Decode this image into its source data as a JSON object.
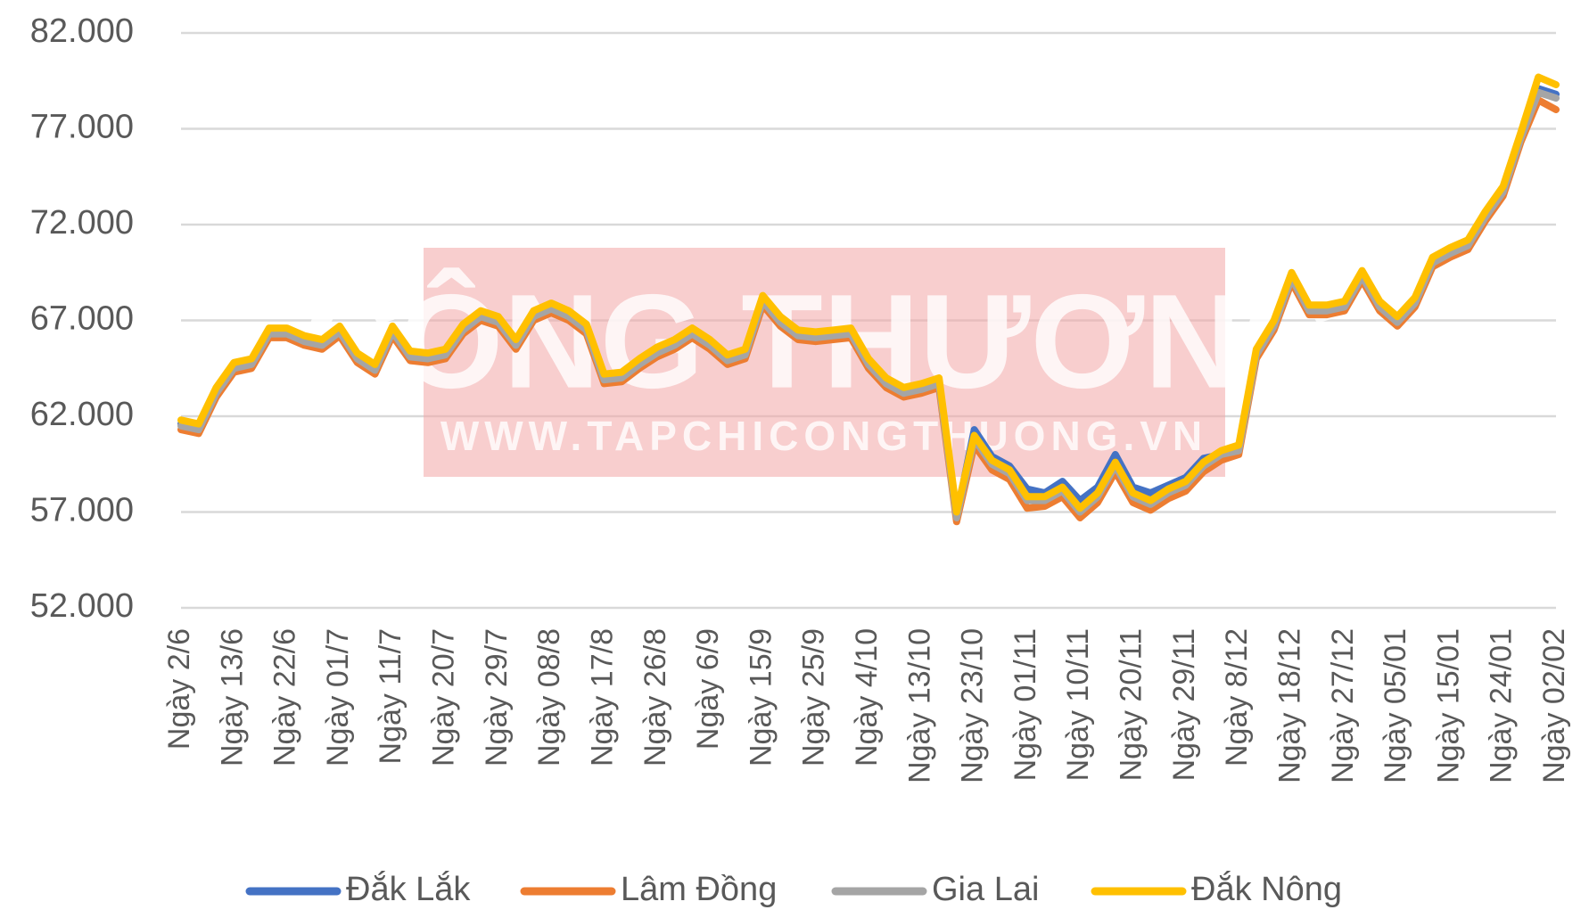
{
  "chart_data": {
    "type": "line",
    "watermark": "CÔNG THƯƠNG",
    "watermark_url": "WWW.TAPCHICONGTHUONG.VN",
    "categories": [
      "Ngày 2/6",
      null,
      null,
      "Ngày 13/6",
      null,
      null,
      "Ngày 22/6",
      null,
      null,
      "Ngày 01/7",
      null,
      null,
      "Ngày 11/7",
      null,
      null,
      "Ngày 20/7",
      null,
      null,
      "Ngày 29/7",
      null,
      null,
      "Ngày 08/8",
      null,
      null,
      "Ngày 17/8",
      null,
      null,
      "Ngày 26/8",
      null,
      null,
      "Ngày 6/9",
      null,
      null,
      "Ngày 15/9",
      null,
      null,
      "Ngày 25/9",
      null,
      null,
      "Ngày 4/10",
      null,
      null,
      "Ngày 13/10",
      null,
      null,
      "Ngày 23/10",
      null,
      null,
      "Ngày 01/11",
      null,
      null,
      "Ngày 10/11",
      null,
      null,
      "Ngày 20/11",
      null,
      null,
      "Ngày 29/11",
      null,
      null,
      "Ngày 8/12",
      null,
      null,
      "Ngày 18/12",
      null,
      null,
      "Ngày 27/12",
      null,
      null,
      "Ngày 05/01",
      null,
      null,
      "Ngày 15/01",
      null,
      null,
      "Ngày 24/01",
      null,
      null,
      "Ngày 02/02"
    ],
    "series": [
      {
        "name": "Đắk Lắk",
        "color": "#4472c4",
        "values": [
          61600,
          61400,
          63300,
          64600,
          64800,
          66400,
          66400,
          66000,
          65800,
          66500,
          65100,
          64500,
          66500,
          65200,
          65100,
          65300,
          66600,
          67300,
          67000,
          65800,
          67300,
          67700,
          67300,
          66600,
          64000,
          64100,
          64800,
          65400,
          65800,
          66400,
          65800,
          65000,
          65300,
          68100,
          67000,
          66300,
          66200,
          66300,
          66400,
          64800,
          63800,
          63300,
          63500,
          63800,
          56800,
          61300,
          59900,
          59400,
          58200,
          58000,
          58600,
          57600,
          58300,
          60000,
          58300,
          58000,
          58400,
          58800,
          59800,
          60000,
          60300,
          65300,
          66800,
          69300,
          67600,
          67600,
          67800,
          69400,
          67800,
          67000,
          68000,
          70100,
          70600,
          71000,
          72500,
          73800,
          76600,
          79100,
          78800
        ]
      },
      {
        "name": "Lâm Đồng",
        "color": "#ed7d31",
        "values": [
          61300,
          61100,
          63000,
          64300,
          64500,
          66100,
          66100,
          65700,
          65500,
          66200,
          64800,
          64200,
          66200,
          64900,
          64800,
          65000,
          66300,
          67000,
          66700,
          65500,
          67000,
          67400,
          67000,
          66300,
          63700,
          63800,
          64500,
          65100,
          65500,
          66100,
          65500,
          64700,
          65000,
          67800,
          66700,
          66000,
          65900,
          66000,
          66100,
          64500,
          63500,
          63000,
          63200,
          63500,
          56500,
          60500,
          59200,
          58700,
          57200,
          57300,
          57800,
          56700,
          57500,
          59100,
          57500,
          57100,
          57700,
          58100,
          59100,
          59700,
          60000,
          65000,
          66500,
          69000,
          67300,
          67300,
          67500,
          69100,
          67500,
          66700,
          67700,
          69800,
          70300,
          70700,
          72200,
          73500,
          76300,
          78500,
          78000
        ]
      },
      {
        "name": "Gia Lai",
        "color": "#a5a5a5",
        "values": [
          61500,
          61300,
          63200,
          64500,
          64700,
          66300,
          66300,
          65900,
          65700,
          66400,
          65000,
          64400,
          66400,
          65100,
          65000,
          65200,
          66500,
          67200,
          66900,
          65700,
          67200,
          67600,
          67200,
          66500,
          63900,
          64000,
          64700,
          65300,
          65700,
          66300,
          65700,
          64900,
          65200,
          68000,
          66900,
          66200,
          66100,
          66200,
          66300,
          64700,
          63700,
          63200,
          63400,
          63700,
          56700,
          60800,
          59500,
          59000,
          57600,
          57600,
          58100,
          57000,
          57800,
          59400,
          57800,
          57400,
          58000,
          58400,
          59400,
          60000,
          60200,
          65200,
          66700,
          69200,
          67500,
          67500,
          67700,
          69300,
          67700,
          66900,
          67900,
          70000,
          70500,
          70900,
          72400,
          73700,
          76500,
          78900,
          78600
        ]
      },
      {
        "name": "Đắk Nông",
        "color": "#ffc000",
        "values": [
          61800,
          61600,
          63500,
          64800,
          65000,
          66600,
          66600,
          66200,
          66000,
          66700,
          65300,
          64700,
          66700,
          65400,
          65300,
          65500,
          66800,
          67500,
          67200,
          66000,
          67500,
          67900,
          67500,
          66800,
          64200,
          64300,
          65000,
          65600,
          66000,
          66600,
          66000,
          65200,
          65500,
          68300,
          67200,
          66500,
          66400,
          66500,
          66600,
          65000,
          64000,
          63500,
          63700,
          64000,
          57000,
          61000,
          59700,
          59200,
          57800,
          57800,
          58300,
          57200,
          58000,
          59600,
          58000,
          57600,
          58200,
          58600,
          59600,
          60200,
          60500,
          65500,
          67000,
          69500,
          67800,
          67800,
          68000,
          69600,
          68000,
          67200,
          68200,
          70300,
          70800,
          71200,
          72700,
          74000,
          76800,
          79700,
          79300
        ]
      }
    ],
    "ylim": [
      52000,
      82000
    ],
    "yticks": [
      {
        "value": 52000,
        "label": "52.000"
      },
      {
        "value": 57000,
        "label": "57.000"
      },
      {
        "value": 62000,
        "label": "62.000"
      },
      {
        "value": 67000,
        "label": "67.000"
      },
      {
        "value": 72000,
        "label": "72.000"
      },
      {
        "value": 77000,
        "label": "77.000"
      },
      {
        "value": 82000,
        "label": "82.000"
      }
    ],
    "grid": true,
    "legend": "bottom"
  }
}
